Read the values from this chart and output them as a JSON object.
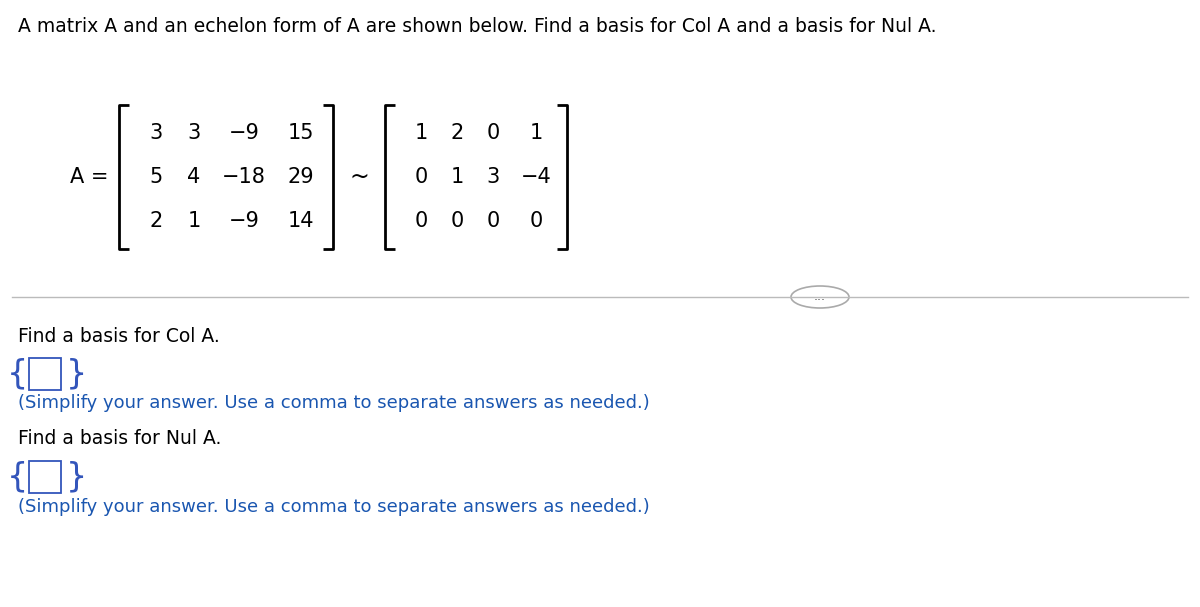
{
  "title": "A matrix A and an echelon form of A are shown below. Find a basis for Col A and a basis for Nul A.",
  "title_fontsize": 13.5,
  "title_color": "#000000",
  "matrix_A_label": "A =",
  "matrix_A": [
    [
      "3",
      "3",
      "−9",
      "15"
    ],
    [
      "5",
      "4",
      "−18",
      "29"
    ],
    [
      "2",
      "1",
      "−9",
      "14"
    ]
  ],
  "tilde": "~",
  "matrix_E": [
    [
      "1",
      "2",
      "0",
      "1"
    ],
    [
      "0",
      "1",
      "3",
      "−4"
    ],
    [
      "0",
      "0",
      "0",
      "0"
    ]
  ],
  "col_question": "Find a basis for Col A.",
  "nul_question": "Find a basis for Nul A.",
  "simplify_text": "(Simplify your answer. Use a comma to separate answers as needed.)",
  "simplify_color": "#1a56b0",
  "separator_color": "#BBBBBB",
  "dots_text": "...",
  "bg_color": "#FFFFFF",
  "text_color": "#000000",
  "matrix_fontsize": 15,
  "label_fontsize": 15,
  "question_fontsize": 13.5,
  "simplify_fontsize": 13.0,
  "bracket_color": "#000000"
}
